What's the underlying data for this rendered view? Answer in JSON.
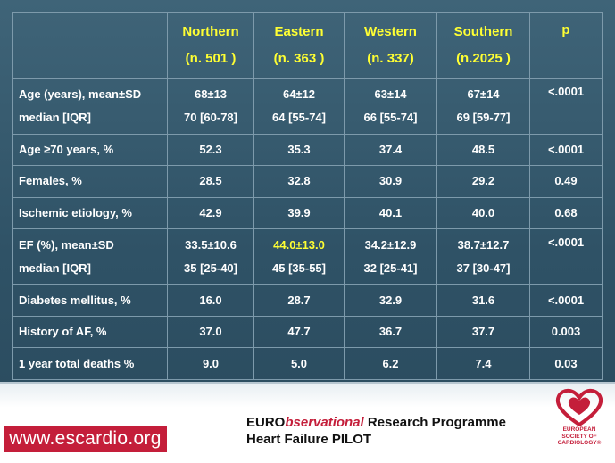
{
  "table": {
    "headers": [
      {
        "name": "",
        "count": ""
      },
      {
        "name": "Northern",
        "count": "(n. 501 )"
      },
      {
        "name": "Eastern",
        "count": "(n. 363 )"
      },
      {
        "name": "Western",
        "count": "(n. 337)"
      },
      {
        "name": "Southern",
        "count": "(n.2025 )"
      },
      {
        "name": "p",
        "count": ""
      }
    ],
    "rows": [
      {
        "label1": "Age (years), mean±SD",
        "label2": "median [IQR]",
        "cells": [
          [
            "68±13",
            "70 [60-78]"
          ],
          [
            "64±12",
            "64 [55-74]"
          ],
          [
            "63±14",
            "66 [55-74]"
          ],
          [
            "67±14",
            "69 [59-77]"
          ],
          [
            "<.0001",
            ""
          ]
        ]
      },
      {
        "label1": "Age ≥70 years, %",
        "cells": [
          "52.3",
          "35.3",
          "37.4",
          "48.5",
          "<.0001"
        ]
      },
      {
        "label1": "Females, %",
        "cells": [
          "28.5",
          "32.8",
          "30.9",
          "29.2",
          "0.49"
        ]
      },
      {
        "label1": "Ischemic etiology, %",
        "cells": [
          "42.9",
          "39.9",
          "40.1",
          "40.0",
          "0.68"
        ]
      },
      {
        "label1": "EF (%), mean±SD",
        "label2": "median [IQR]",
        "cells": [
          [
            "33.5±10.6",
            "35 [25-40]"
          ],
          [
            "44.0±13.0",
            "45 [35-55]"
          ],
          [
            "34.2±12.9",
            "32 [25-41]"
          ],
          [
            "38.7±12.7",
            "37 [30-47]"
          ],
          [
            "<.0001",
            ""
          ]
        ]
      },
      {
        "label1": "Diabetes mellitus, %",
        "cells": [
          "16.0",
          "28.7",
          "32.9",
          "31.6",
          "<.0001"
        ]
      },
      {
        "label1": "History of AF, %",
        "cells": [
          "37.0",
          "47.7",
          "36.7",
          "37.7",
          "0.003"
        ]
      },
      {
        "label1": "1 year total deaths %",
        "cells": [
          "9.0",
          "5.0",
          "6.2",
          "7.4",
          "0.03"
        ]
      }
    ],
    "highlight_color": "#ffff33"
  },
  "footer": {
    "url": "www.escardio.org",
    "program_prefix": "EURO",
    "program_italic": "bservational",
    "program_suffix": " Research Programme",
    "program_line2": "Heart Failure PILOT",
    "logo_lines": [
      "EUROPEAN",
      "SOCIETY OF",
      "CARDIOLOGY®"
    ],
    "brand_color": "#c41e3a"
  }
}
